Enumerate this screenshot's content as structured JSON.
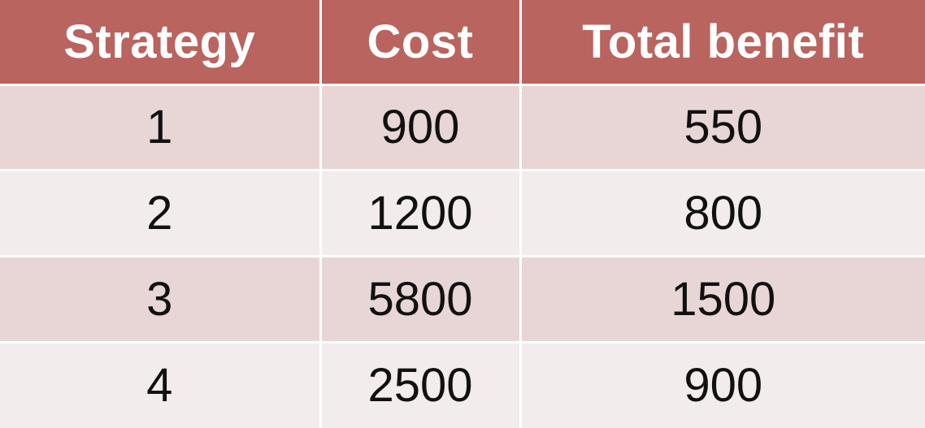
{
  "table": {
    "headers": [
      "Strategy",
      "Cost",
      "Total benefit"
    ],
    "rows": [
      [
        "1",
        "900",
        "550"
      ],
      [
        "2",
        "1200",
        "800"
      ],
      [
        "3",
        "5800",
        "1500"
      ],
      [
        "4",
        "2500",
        "900"
      ]
    ]
  },
  "colors": {
    "header_background": "#b9645f",
    "header_text": "#ffffff",
    "row_band_dark": "#e8d6d6",
    "row_band_light": "#f3ecec"
  }
}
